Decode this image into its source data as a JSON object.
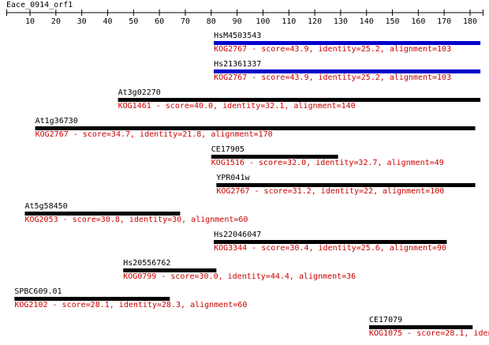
{
  "chart_data": {
    "type": "alignment",
    "title": "Eace_0914_orf1",
    "xlim": [
      1,
      185
    ],
    "xticks": [
      10,
      20,
      30,
      40,
      50,
      60,
      70,
      80,
      90,
      100,
      110,
      120,
      130,
      140,
      150,
      160,
      170,
      180
    ],
    "label_color": "#cc0000",
    "hits": [
      {
        "name": "HsM4503543",
        "label": "KOG2767 - score=43.9, identity=25.2, alignment=103",
        "start": 81,
        "end": 184,
        "color": "#0000cc"
      },
      {
        "name": "Hs21361337",
        "label": "KOG2767 - score=43.9, identity=25.2, alignment=103",
        "start": 81,
        "end": 184,
        "color": "#0000cc"
      },
      {
        "name": "At3g02270",
        "label": "KOG1461 - score=40.0, identity=32.1, alignment=140",
        "start": 44,
        "end": 184,
        "color": "#000000"
      },
      {
        "name": "At1g36730",
        "label": "KOG2767 - score=34.7, identity=21.8, alignment=170",
        "start": 12,
        "end": 182,
        "color": "#000000"
      },
      {
        "name": "CE17905",
        "label": "KOG1516 - score=32.0, identity=32.7, alignment=49",
        "start": 80,
        "end": 129,
        "color": "#000000"
      },
      {
        "name": "YPR041w",
        "label": "KOG2767 - score=31.2, identity=22, alignment=100",
        "start": 82,
        "end": 182,
        "color": "#000000"
      },
      {
        "name": "At5g58450",
        "label": "KOG2053 - score=30.8, identity=30, alignment=60",
        "start": 8,
        "end": 68,
        "color": "#000000"
      },
      {
        "name": "Hs22046047",
        "label": "KOG3344 - score=30.4, identity=25.6, alignment=90",
        "start": 81,
        "end": 171,
        "color": "#000000"
      },
      {
        "name": "Hs20556762",
        "label": "KOG0799 - score=30.0, identity=44.4, alignment=36",
        "start": 46,
        "end": 82,
        "color": "#000000"
      },
      {
        "name": "SPBC609.01",
        "label": "KOG2102 - score=28.1, identity=28.3, alignment=60",
        "start": 4,
        "end": 64,
        "color": "#000000"
      },
      {
        "name": "CE17079",
        "label": "KOG1075 - score=28.1, iden",
        "start": 141,
        "end": 181,
        "color": "#000000"
      }
    ]
  }
}
